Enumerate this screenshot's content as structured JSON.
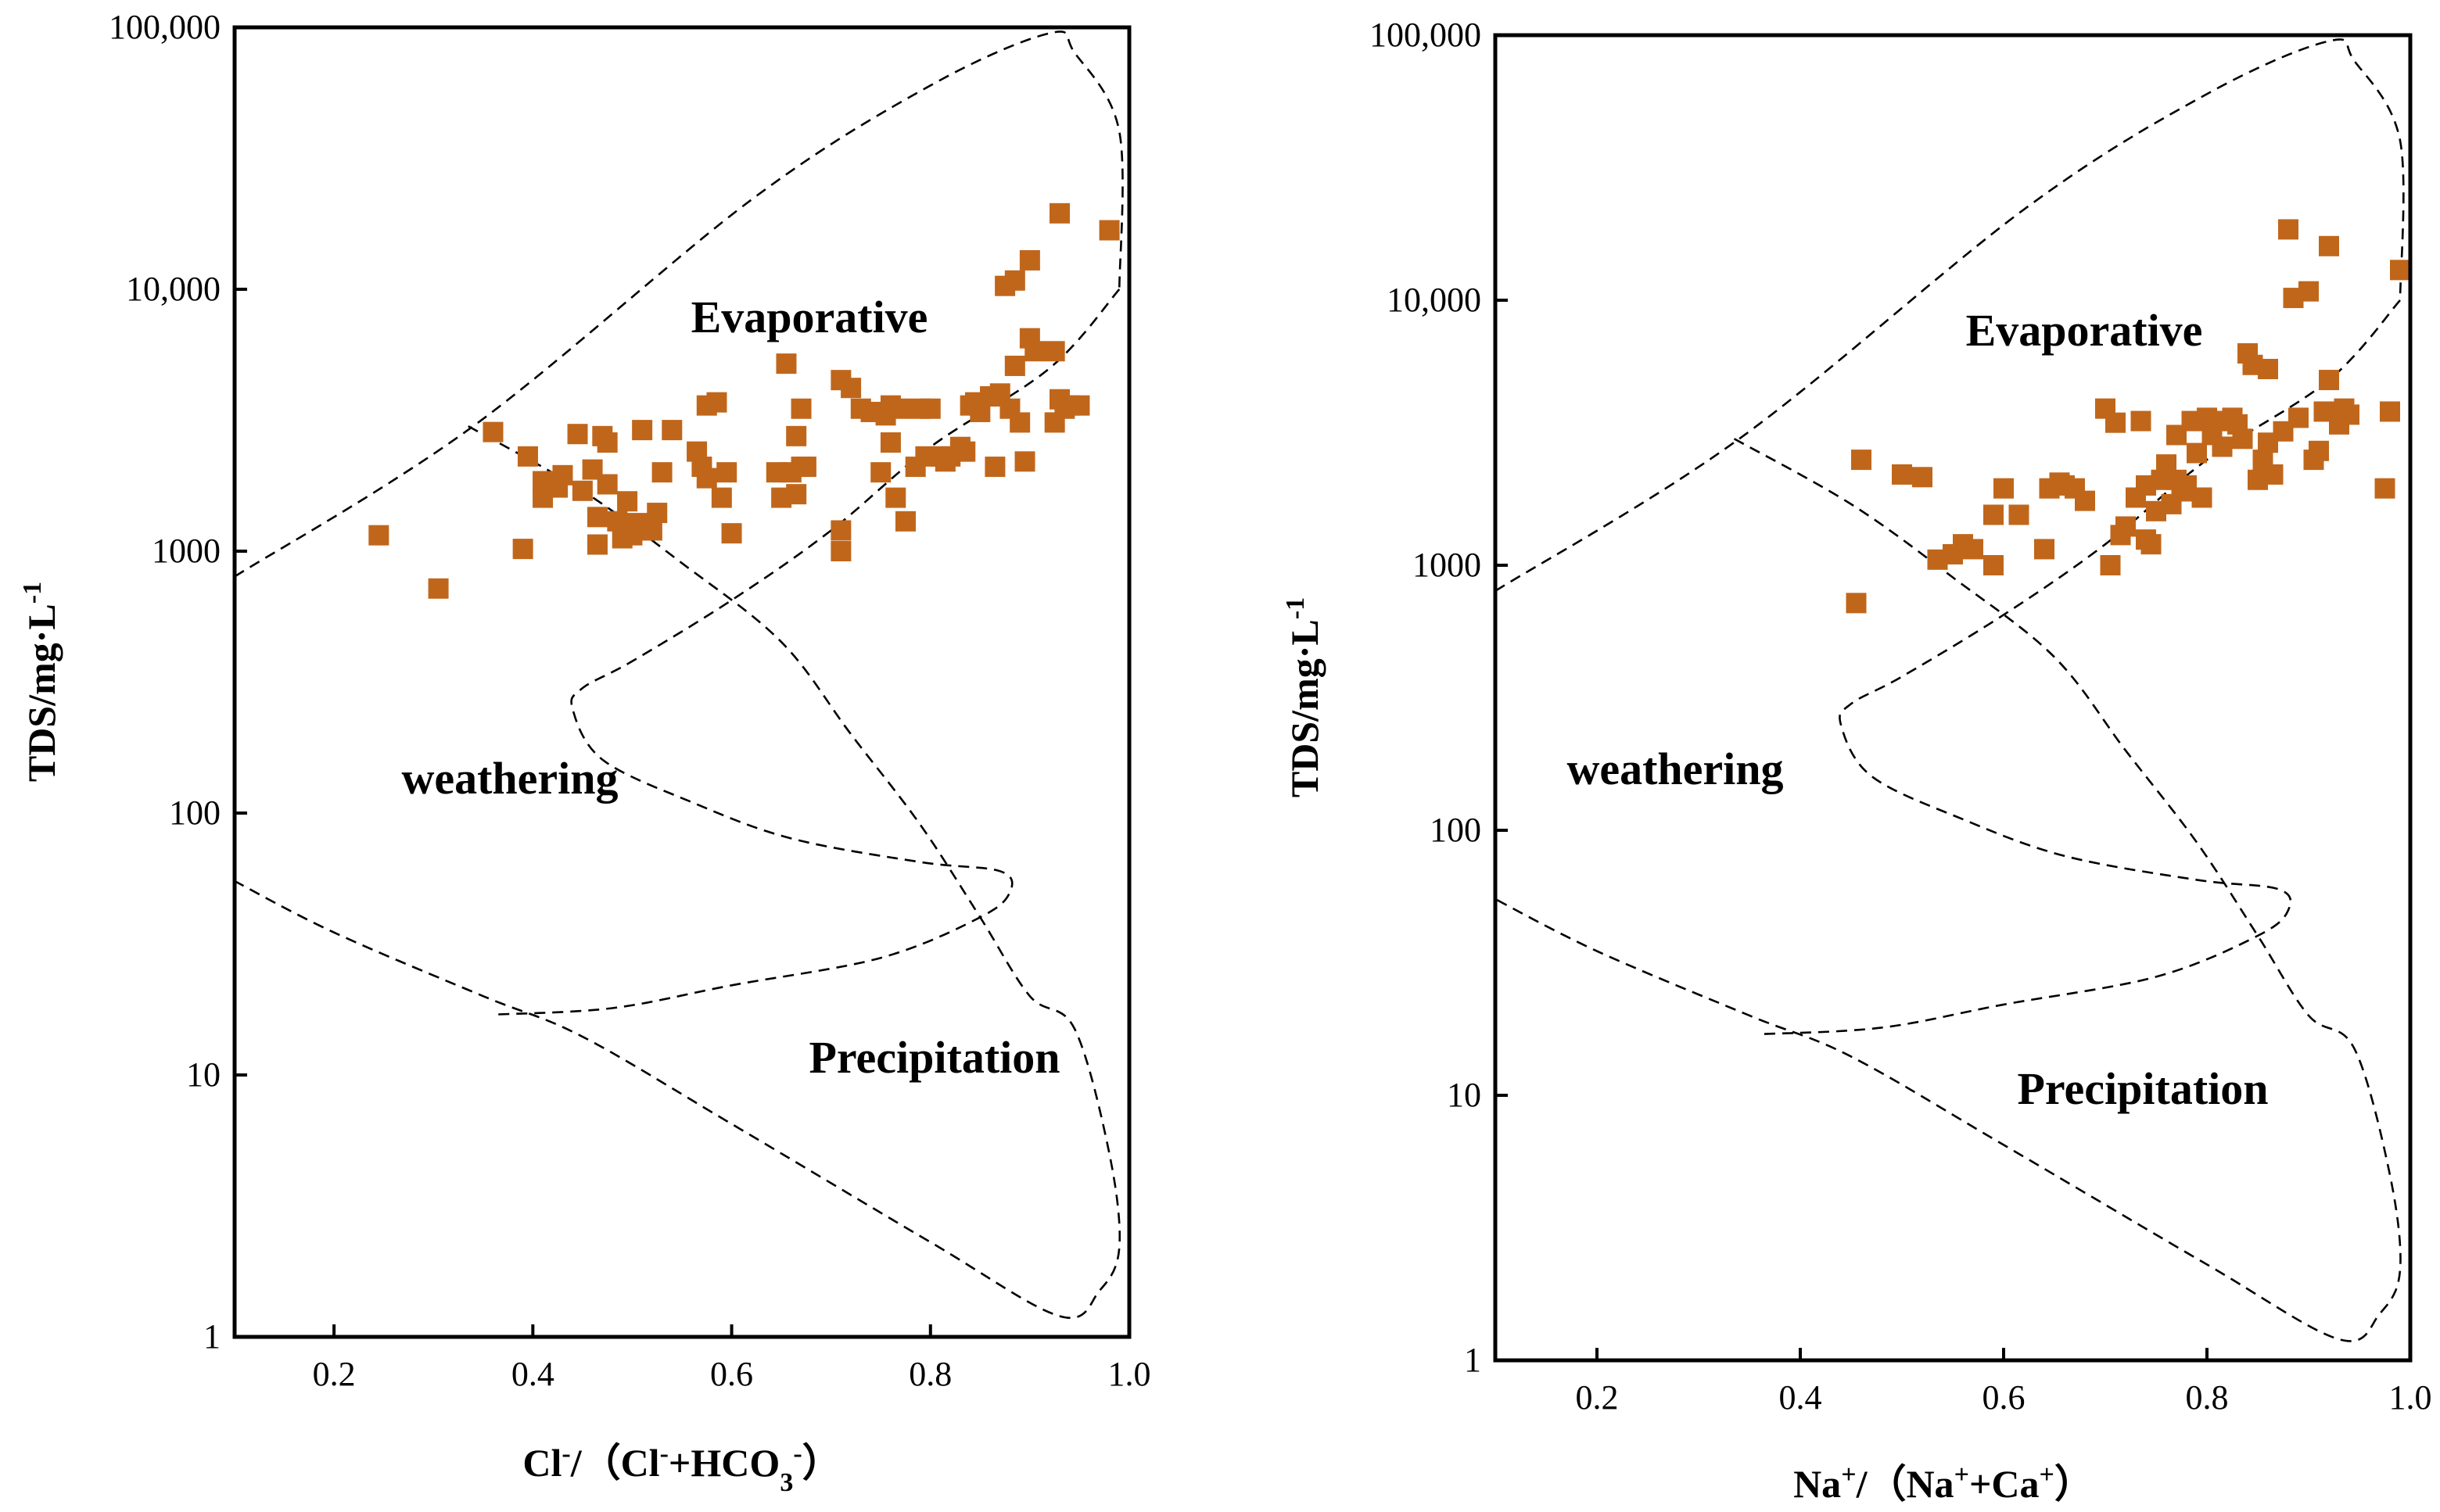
{
  "colors": {
    "marker": "#C0661B",
    "axis": "#000000"
  },
  "chart_data": [
    {
      "type": "scatter",
      "xlabel": {
        "main": "Cl",
        "sup": "-",
        "rest": "/（Cl",
        "sup2": "-",
        "rest2": "+HCO",
        "sub": "3",
        "sup3": "-",
        "rest3": "）"
      },
      "ylabel": "TDS/mg·L",
      "ylabel_sup": "-1",
      "x_range": [
        0.1,
        1.0
      ],
      "y_range": [
        1,
        100000
      ],
      "y_scale": "log",
      "x_ticks": [
        "0.2",
        "0.4",
        "0.6",
        "0.8",
        "1.0"
      ],
      "y_ticks": [
        "1",
        "10",
        "100",
        "1000",
        "10,000",
        "100,000"
      ],
      "regions": [
        "Evaporative",
        "weathering",
        "Precipitation"
      ],
      "points": [
        [
          0.245,
          1150
        ],
        [
          0.305,
          720
        ],
        [
          0.36,
          2850
        ],
        [
          0.39,
          1020
        ],
        [
          0.395,
          2300
        ],
        [
          0.41,
          1600
        ],
        [
          0.41,
          1850
        ],
        [
          0.425,
          1750
        ],
        [
          0.43,
          1950
        ],
        [
          0.445,
          2800
        ],
        [
          0.45,
          1700
        ],
        [
          0.46,
          2050
        ],
        [
          0.465,
          1350
        ],
        [
          0.465,
          1060
        ],
        [
          0.47,
          2750
        ],
        [
          0.475,
          1800
        ],
        [
          0.475,
          2600
        ],
        [
          0.485,
          1300
        ],
        [
          0.49,
          1120
        ],
        [
          0.495,
          1550
        ],
        [
          0.5,
          1150
        ],
        [
          0.505,
          1280
        ],
        [
          0.51,
          1200
        ],
        [
          0.51,
          2900
        ],
        [
          0.52,
          1200
        ],
        [
          0.525,
          1400
        ],
        [
          0.53,
          2000
        ],
        [
          0.54,
          2900
        ],
        [
          0.565,
          2400
        ],
        [
          0.57,
          2100
        ],
        [
          0.575,
          1900
        ],
        [
          0.575,
          3600
        ],
        [
          0.585,
          3700
        ],
        [
          0.59,
          1600
        ],
        [
          0.595,
          2000
        ],
        [
          0.6,
          1170
        ],
        [
          0.645,
          2000
        ],
        [
          0.65,
          1600
        ],
        [
          0.655,
          5200
        ],
        [
          0.66,
          2000
        ],
        [
          0.665,
          2750
        ],
        [
          0.665,
          1650
        ],
        [
          0.67,
          3500
        ],
        [
          0.67,
          2100
        ],
        [
          0.675,
          2100
        ],
        [
          0.71,
          1200
        ],
        [
          0.71,
          1000
        ],
        [
          0.71,
          4500
        ],
        [
          0.72,
          4200
        ],
        [
          0.73,
          3500
        ],
        [
          0.74,
          3400
        ],
        [
          0.75,
          2000
        ],
        [
          0.755,
          3300
        ],
        [
          0.76,
          2600
        ],
        [
          0.76,
          3600
        ],
        [
          0.765,
          1600
        ],
        [
          0.77,
          3500
        ],
        [
          0.775,
          1300
        ],
        [
          0.785,
          2100
        ],
        [
          0.79,
          3500
        ],
        [
          0.795,
          2300
        ],
        [
          0.8,
          3500
        ],
        [
          0.81,
          2300
        ],
        [
          0.815,
          2200
        ],
        [
          0.82,
          2300
        ],
        [
          0.83,
          2500
        ],
        [
          0.835,
          2400
        ],
        [
          0.84,
          3600
        ],
        [
          0.845,
          3700
        ],
        [
          0.85,
          3400
        ],
        [
          0.86,
          3900
        ],
        [
          0.865,
          2100
        ],
        [
          0.87,
          4000
        ],
        [
          0.875,
          10300
        ],
        [
          0.88,
          3500
        ],
        [
          0.885,
          10800
        ],
        [
          0.885,
          5100
        ],
        [
          0.89,
          3100
        ],
        [
          0.895,
          2200
        ],
        [
          0.9,
          12900
        ],
        [
          0.9,
          6500
        ],
        [
          0.905,
          5800
        ],
        [
          0.925,
          5800
        ],
        [
          0.925,
          3100
        ],
        [
          0.93,
          19500
        ],
        [
          0.93,
          3800
        ],
        [
          0.935,
          3500
        ],
        [
          0.94,
          3600
        ],
        [
          0.95,
          3600
        ],
        [
          0.98,
          16800
        ]
      ]
    },
    {
      "type": "scatter",
      "xlabel": {
        "main": "Na",
        "sup": "+",
        "rest": "/（Na",
        "sup2": "+",
        "rest2": "+Ca",
        "sub": "",
        "sup3": "+",
        "rest3": "）"
      },
      "ylabel": "TDS/mg·L",
      "ylabel_sup": "-1",
      "x_range": [
        0.1,
        1.0
      ],
      "y_range": [
        1,
        100000
      ],
      "y_scale": "log",
      "x_ticks": [
        "0.2",
        "0.4",
        "0.6",
        "0.8",
        "1.0"
      ],
      "y_ticks": [
        "1",
        "10",
        "100",
        "1000",
        "10,000",
        "100,000"
      ],
      "regions": [
        "Evaporative",
        "weathering",
        "Precipitation"
      ],
      "points": [
        [
          0.455,
          720
        ],
        [
          0.46,
          2500
        ],
        [
          0.5,
          2200
        ],
        [
          0.52,
          2150
        ],
        [
          0.535,
          1050
        ],
        [
          0.55,
          1100
        ],
        [
          0.56,
          1200
        ],
        [
          0.57,
          1150
        ],
        [
          0.59,
          1000
        ],
        [
          0.59,
          1550
        ],
        [
          0.6,
          1950
        ],
        [
          0.615,
          1550
        ],
        [
          0.64,
          1150
        ],
        [
          0.645,
          1950
        ],
        [
          0.655,
          2050
        ],
        [
          0.66,
          2000
        ],
        [
          0.67,
          1950
        ],
        [
          0.68,
          1750
        ],
        [
          0.7,
          3900
        ],
        [
          0.705,
          1000
        ],
        [
          0.71,
          3450
        ],
        [
          0.715,
          1300
        ],
        [
          0.72,
          1400
        ],
        [
          0.73,
          1800
        ],
        [
          0.735,
          3500
        ],
        [
          0.74,
          1250
        ],
        [
          0.74,
          2000
        ],
        [
          0.745,
          1200
        ],
        [
          0.75,
          1600
        ],
        [
          0.755,
          2100
        ],
        [
          0.76,
          2400
        ],
        [
          0.765,
          1700
        ],
        [
          0.77,
          2100
        ],
        [
          0.77,
          3100
        ],
        [
          0.775,
          1900
        ],
        [
          0.78,
          2000
        ],
        [
          0.785,
          3500
        ],
        [
          0.79,
          2650
        ],
        [
          0.795,
          1800
        ],
        [
          0.8,
          3600
        ],
        [
          0.805,
          3100
        ],
        [
          0.81,
          3500
        ],
        [
          0.815,
          2800
        ],
        [
          0.82,
          3500
        ],
        [
          0.825,
          3600
        ],
        [
          0.83,
          3400
        ],
        [
          0.835,
          3000
        ],
        [
          0.84,
          6300
        ],
        [
          0.845,
          5700
        ],
        [
          0.85,
          2100
        ],
        [
          0.855,
          2500
        ],
        [
          0.86,
          2900
        ],
        [
          0.86,
          5500
        ],
        [
          0.865,
          2200
        ],
        [
          0.875,
          3200
        ],
        [
          0.88,
          18500
        ],
        [
          0.885,
          10200
        ],
        [
          0.89,
          3600
        ],
        [
          0.9,
          10800
        ],
        [
          0.905,
          2500
        ],
        [
          0.91,
          2700
        ],
        [
          0.915,
          3800
        ],
        [
          0.92,
          16000
        ],
        [
          0.92,
          5000
        ],
        [
          0.93,
          3400
        ],
        [
          0.935,
          3900
        ],
        [
          0.94,
          3700
        ],
        [
          0.975,
          1950
        ],
        [
          0.98,
          3800
        ],
        [
          0.99,
          13000
        ]
      ]
    }
  ]
}
